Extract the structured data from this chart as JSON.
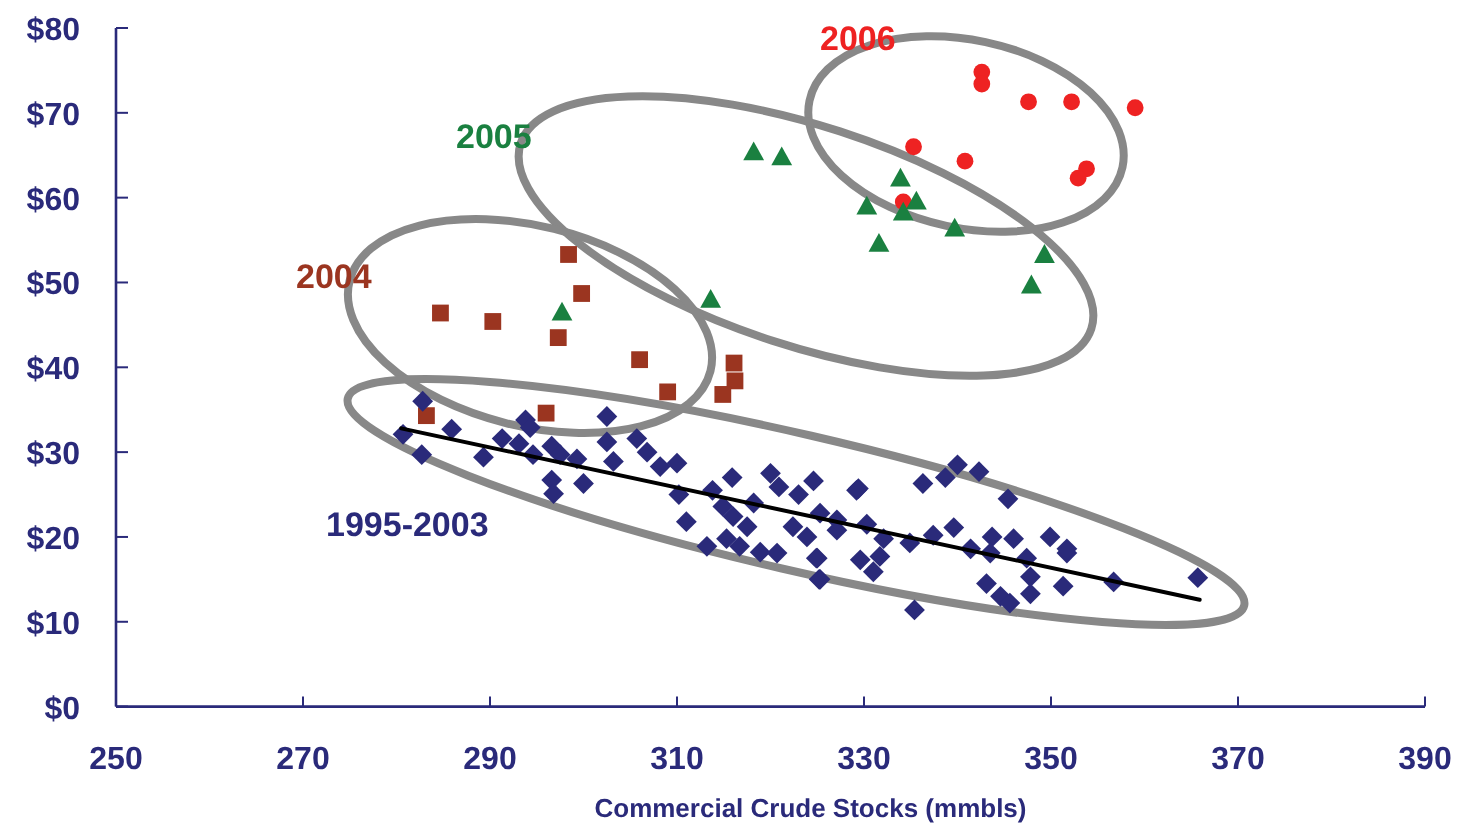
{
  "chart_data": {
    "type": "scatter",
    "xlabel": "Commercial Crude Stocks (mmbls)",
    "xlim": [
      250,
      390
    ],
    "xticks": [
      250,
      270,
      290,
      310,
      330,
      350,
      370,
      390
    ],
    "ylim": [
      0,
      80
    ],
    "yticks": [
      {
        "value": 0,
        "label": "$0"
      },
      {
        "value": 10,
        "label": "$10"
      },
      {
        "value": 20,
        "label": "$20"
      },
      {
        "value": 30,
        "label": "$30"
      },
      {
        "value": 40,
        "label": "$40"
      },
      {
        "value": 50,
        "label": "$50"
      },
      {
        "value": 60,
        "label": "$60"
      },
      {
        "value": 70,
        "label": "$70"
      },
      {
        "value": 80,
        "label": "$80"
      }
    ],
    "grid": false,
    "legend": false,
    "series": [
      {
        "name": "2006",
        "color": "#ee2222",
        "marker": "circle",
        "x": [
          342.6,
          342.6,
          347.6,
          352.2,
          359.0,
          335.3,
          340.8,
          353.8,
          352.9,
          334.2
        ],
        "values": [
          74.8,
          73.4,
          71.3,
          71.3,
          70.6,
          66.0,
          64.3,
          63.4,
          62.3,
          59.5
        ]
      },
      {
        "name": "2005",
        "color": "#1a8040",
        "marker": "triangle",
        "x": [
          318.2,
          321.2,
          333.9,
          335.6,
          330.3,
          334.2,
          339.7,
          331.6,
          349.3,
          347.9,
          313.6,
          297.7
        ],
        "values": [
          65.4,
          64.8,
          62.3,
          59.6,
          59.0,
          58.3,
          56.4,
          54.6,
          53.3,
          49.7,
          48.0,
          46.5
        ]
      },
      {
        "name": "2004",
        "color": "#9b3520",
        "marker": "square",
        "x": [
          298.4,
          299.8,
          284.7,
          290.3,
          297.3,
          306.0,
          316.1,
          316.2,
          309.0,
          314.9,
          296.0,
          283.2
        ],
        "values": [
          53.3,
          48.7,
          46.4,
          45.4,
          43.5,
          40.9,
          40.5,
          38.4,
          37.1,
          36.8,
          34.6,
          34.3
        ]
      },
      {
        "name": "1995-2003",
        "color": "#2a2a7a",
        "marker": "diamond",
        "x": [
          282.8,
          280.7,
          282.7,
          285.9,
          289.3,
          291.3,
          293.1,
          293.8,
          294.3,
          294.6,
          296.6,
          297.5,
          296.6,
          296.8,
          299.3,
          300.0,
          302.5,
          302.5,
          303.2,
          305.7,
          306.8,
          308.2,
          310.0,
          310.2,
          311.0,
          313.2,
          313.8,
          315.9,
          314.9,
          316.0,
          315.3,
          316.7,
          317.5,
          318.2,
          318.9,
          320.0,
          320.7,
          320.9,
          323.0,
          324.6,
          322.4,
          323.9,
          325.3,
          325.0,
          327.1,
          325.2,
          329.2,
          329.4,
          336.3,
          338.7,
          340.0,
          342.3,
          345.4,
          327.1,
          330.3,
          332.1,
          334.9,
          337.4,
          339.6,
          341.4,
          343.7,
          346.0,
          343.5,
          347.4,
          349.9,
          351.7,
          351.7,
          324.9,
          329.6,
          331.7,
          331.0,
          325.3,
          343.1,
          344.6,
          345.6,
          347.8,
          347.8,
          351.3,
          356.7,
          365.7,
          335.4
        ],
        "values": [
          36.0,
          32.1,
          29.7,
          32.7,
          29.4,
          31.6,
          31.0,
          33.8,
          32.9,
          29.7,
          30.7,
          29.7,
          26.7,
          25.1,
          29.2,
          26.3,
          34.2,
          31.2,
          28.9,
          31.6,
          30.0,
          28.3,
          28.7,
          25.0,
          21.8,
          18.9,
          25.5,
          27.0,
          23.6,
          22.4,
          19.8,
          18.9,
          21.2,
          24.0,
          18.2,
          27.5,
          18.1,
          25.9,
          25.0,
          26.6,
          21.2,
          20.0,
          22.8,
          17.5,
          20.8,
          15.0,
          25.5,
          25.7,
          26.3,
          27.0,
          28.5,
          27.7,
          24.5,
          22.0,
          21.5,
          19.8,
          19.3,
          20.2,
          21.1,
          18.6,
          20.0,
          19.8,
          18.1,
          17.5,
          20.0,
          18.1,
          18.6,
          17.5,
          17.3,
          17.7,
          15.9,
          15.0,
          14.5,
          13.0,
          12.2,
          13.3,
          15.3,
          14.2,
          14.7,
          15.2,
          11.4
        ]
      },
      {
        "type": "line",
        "color": "#000000",
        "marker": "none",
        "line_style": "solid",
        "x": [
          280.5,
          365.9
        ],
        "values": [
          32.8,
          12.6
        ]
      }
    ]
  }
}
